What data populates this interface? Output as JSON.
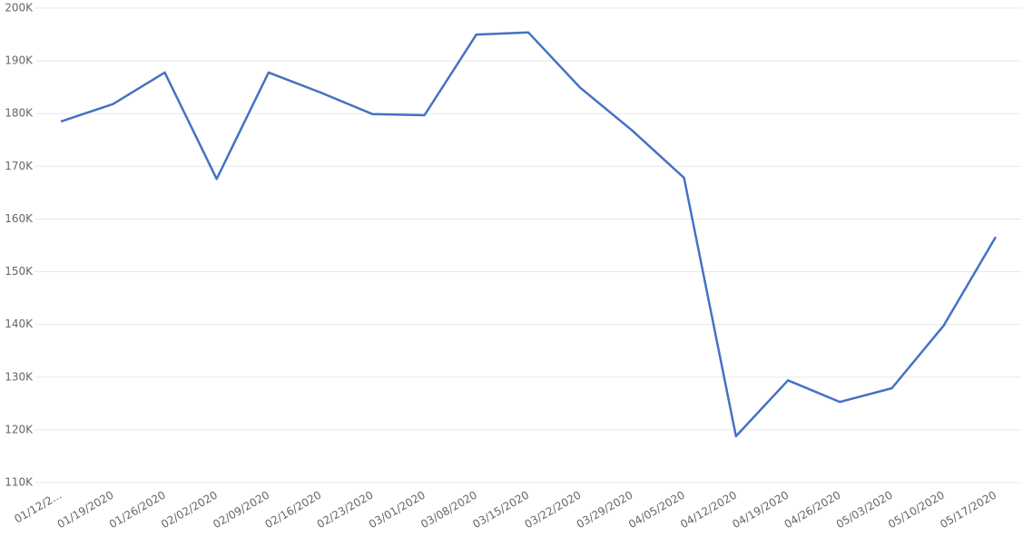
{
  "chart_data": {
    "type": "line",
    "categories": [
      "01/12/2...",
      "01/19/2020",
      "01/26/2020",
      "02/02/2020",
      "02/09/2020",
      "02/16/2020",
      "02/23/2020",
      "03/01/2020",
      "03/08/2020",
      "03/15/2020",
      "03/22/2020",
      "03/29/2020",
      "04/05/2020",
      "04/12/2020",
      "04/19/2020",
      "04/26/2020",
      "05/03/2020",
      "05/10/2020",
      "05/17/2020"
    ],
    "values": [
      178500,
      181800,
      187800,
      167600,
      187800,
      184000,
      179900,
      179700,
      195000,
      195400,
      184900,
      176800,
      167800,
      118800,
      129400,
      125300,
      127900,
      139800,
      156600
    ],
    "color": "#4472c4",
    "ylim": [
      110000,
      200000
    ],
    "yticks": [
      {
        "value": 110000,
        "label": "110K"
      },
      {
        "value": 120000,
        "label": "120K"
      },
      {
        "value": 130000,
        "label": "130K"
      },
      {
        "value": 140000,
        "label": "140K"
      },
      {
        "value": 150000,
        "label": "150K"
      },
      {
        "value": 160000,
        "label": "160K"
      },
      {
        "value": 170000,
        "label": "170K"
      },
      {
        "value": 180000,
        "label": "180K"
      },
      {
        "value": 190000,
        "label": "190K"
      },
      {
        "value": 200000,
        "label": "200K"
      }
    ],
    "grid": true
  }
}
